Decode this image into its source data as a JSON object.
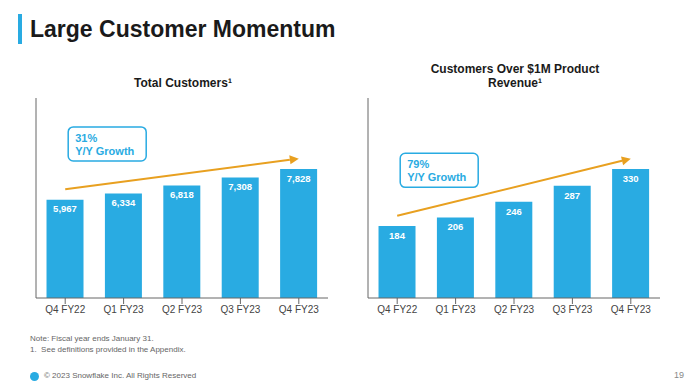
{
  "title": "Large Customer Momentum",
  "annotations": [
    "Note: Fiscal year ends January 31.",
    "1.  See definitions provided in the Appendix.",
    "© 2023 Snowflake Inc. All Rights Reserved",
    "19"
  ],
  "chart_data": [
    {
      "type": "bar",
      "subtitle": "Total Customers¹",
      "categories": [
        "Q4 FY22",
        "Q1 FY23",
        "Q2 FY23",
        "Q3 FY23",
        "Q4 FY23"
      ],
      "values": [
        5967,
        6334,
        6818,
        7308,
        7828
      ],
      "value_labels": [
        "5,967",
        "6,334",
        "6,818",
        "7,308",
        "7,828"
      ],
      "color": "#29abe2",
      "ylim": [
        0,
        12133.4
      ],
      "tick_labels": "x",
      "data_labels": true,
      "annotations": [
        {
          "text": "31%\nY/Y Growth",
          "color": "#29abe2"
        },
        {
          "type": "arrow",
          "color": "#e8a020"
        }
      ]
    },
    {
      "type": "bar",
      "subtitle": "Customers Over $1M Product\nRevenue¹",
      "categories": [
        "Q4 FY22",
        "Q1 FY23",
        "Q2 FY23",
        "Q3 FY23",
        "Q4 FY23"
      ],
      "values": [
        184,
        206,
        246,
        287,
        330
      ],
      "color": "#29abe2",
      "ylim": [
        0,
        511.5
      ],
      "tick_labels": "x",
      "data_labels": true,
      "annotations": [
        {
          "text": "79%\nY/Y Growth",
          "color": "#29abe2"
        },
        {
          "type": "arrow",
          "color": "#e8a020"
        }
      ]
    }
  ]
}
